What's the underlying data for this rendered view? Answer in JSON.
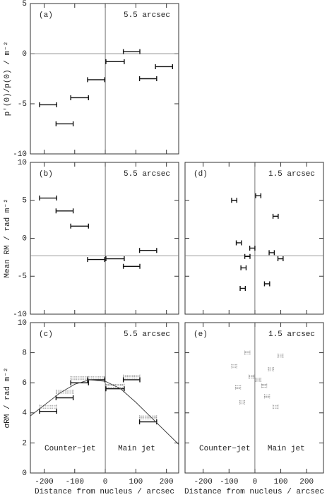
{
  "chart_data": [
    {
      "type": "errorbar",
      "panel_label": "(a)",
      "resolution": "5.5 arcsec",
      "ylabel": "p'(0)/p(0) / m⁻²",
      "xlim": [
        -245,
        240
      ],
      "ylim": [
        -10,
        5
      ],
      "xticks": [
        -200,
        -100,
        0,
        100,
        200
      ],
      "yticks": [
        -10,
        -5,
        0,
        5
      ],
      "xtick_labels": false,
      "ytick_labels": true,
      "hline": 0,
      "vline": 0,
      "series": [
        {
          "style": "solid",
          "x": [
            -187,
            -133,
            -84,
            -30,
            32,
            86,
            140,
            192
          ],
          "xerr": [
            28,
            28,
            29,
            28,
            30,
            27,
            28,
            28
          ],
          "values": [
            -5.1,
            -7.0,
            -4.4,
            -2.6,
            -0.8,
            0.2,
            -2.5,
            -1.3
          ]
        }
      ]
    },
    {
      "type": "errorbar",
      "panel_label": "(b)",
      "resolution": "5.5 arcsec",
      "ylabel": "Mean RM / rad m⁻²",
      "xlim": [
        -245,
        240
      ],
      "ylim": [
        -10,
        10
      ],
      "xticks": [
        -200,
        -100,
        0,
        100,
        200
      ],
      "yticks": [
        -10,
        -5,
        0,
        5,
        10
      ],
      "xtick_labels": false,
      "ytick_labels": true,
      "hline": -2.3,
      "vline": 0,
      "series": [
        {
          "style": "solid",
          "x": [
            -187,
            -133,
            -84,
            -30,
            32,
            86,
            140
          ],
          "xerr": [
            28,
            28,
            29,
            28,
            30,
            27,
            28
          ],
          "values": [
            5.3,
            3.6,
            1.6,
            -2.8,
            -2.7,
            -3.7,
            -1.6
          ]
        }
      ]
    },
    {
      "type": "errorbar",
      "panel_label": "(d)",
      "resolution": "1.5 arcsec",
      "xlim": [
        -270,
        265
      ],
      "ylim": [
        -10,
        10
      ],
      "xticks": [
        -200,
        -100,
        0,
        100,
        200
      ],
      "yticks": [
        -10,
        -5,
        0,
        5,
        10
      ],
      "xtick_labels": false,
      "ytick_labels": false,
      "hline": -2.3,
      "vline": 0,
      "series": [
        {
          "style": "solid",
          "x": [
            -80,
            13,
            80,
            -62,
            -10,
            -29,
            65,
            99,
            -44,
            47,
            -47
          ],
          "xerr": [
            10,
            10,
            10,
            10,
            10,
            10,
            10,
            10,
            10,
            10,
            10
          ],
          "values": [
            5.0,
            5.6,
            2.9,
            -0.6,
            -1.3,
            -2.4,
            -1.9,
            -2.7,
            -3.9,
            -6.0,
            -6.6
          ]
        }
      ]
    },
    {
      "type": "errorbar",
      "panel_label": "(c)",
      "resolution": "5.5 arcsec",
      "ylabel": "σRM / rad m⁻²",
      "xlabel": "Distance from nucleus / arcsec",
      "xlim": [
        -245,
        240
      ],
      "ylim": [
        0,
        10
      ],
      "xticks": [
        -200,
        -100,
        0,
        100,
        200
      ],
      "yticks": [
        0,
        2,
        4,
        6,
        8,
        10
      ],
      "xtick_labels": true,
      "ytick_labels": true,
      "vline": 0,
      "annotations": [
        "Counter−jet",
        "Main jet"
      ],
      "series": [
        {
          "style": "dotted",
          "x": [
            -187,
            -133,
            -84,
            -30,
            32,
            86,
            140
          ],
          "xerr": [
            28,
            28,
            29,
            28,
            30,
            27,
            28
          ],
          "values": [
            4.4,
            5.4,
            6.3,
            6.3,
            5.8,
            6.4,
            3.7
          ]
        },
        {
          "style": "solid",
          "x": [
            -187,
            -133,
            -84,
            -30,
            32,
            86,
            140
          ],
          "xerr": [
            28,
            28,
            29,
            28,
            30,
            27,
            28
          ],
          "values": [
            4.1,
            5.0,
            6.0,
            6.2,
            5.6,
            6.2,
            3.4
          ]
        },
        {
          "style": "line",
          "x": [
            -245,
            -200,
            -150,
            -100,
            -50,
            0,
            50,
            100,
            150,
            200,
            240
          ],
          "values": [
            3.8,
            4.5,
            5.3,
            5.9,
            6.2,
            6.1,
            5.6,
            4.7,
            3.7,
            2.7,
            1.9
          ]
        }
      ]
    },
    {
      "type": "errorbar",
      "panel_label": "(e)",
      "resolution": "1.5 arcsec",
      "xlabel": "Distance from nucleus / arcsec",
      "xlim": [
        -270,
        265
      ],
      "ylim": [
        0,
        10
      ],
      "xticks": [
        -200,
        -100,
        0,
        100,
        200
      ],
      "yticks": [
        0,
        2,
        4,
        6,
        8,
        10
      ],
      "xtick_labels": true,
      "ytick_labels": false,
      "vline": 0,
      "annotations": [
        "Counter−jet",
        "Main jet"
      ],
      "series": [
        {
          "style": "dotted",
          "x": [
            -80,
            -29,
            -65,
            -49,
            -13,
            13,
            36,
            47,
            62,
            99,
            80
          ],
          "xerr": [
            10,
            10,
            10,
            10,
            10,
            10,
            10,
            10,
            10,
            10,
            10
          ],
          "values": [
            7.1,
            8.0,
            5.7,
            4.7,
            6.4,
            6.2,
            5.8,
            5.1,
            6.9,
            7.8,
            4.4
          ]
        }
      ]
    }
  ]
}
